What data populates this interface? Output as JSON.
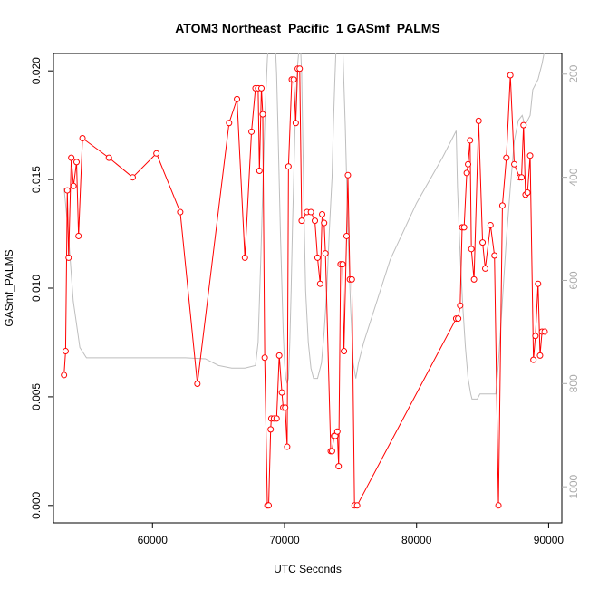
{
  "chart_data": {
    "type": "line",
    "title": "ATOM3 Northeast_Pacific_1 GASmf_PALMS",
    "xlabel": "UTC Seconds",
    "ylabel": "GASmf_PALMS",
    "xlim": [
      52500,
      91000
    ],
    "ylim": [
      -0.0008,
      0.0208
    ],
    "y2lim": [
      1070,
      160
    ],
    "y2_reversed": true,
    "grid": false,
    "x_ticks": [
      60000,
      70000,
      80000,
      90000
    ],
    "x_tick_labels": [
      "60000",
      "70000",
      "80000",
      "90000"
    ],
    "y_ticks": [
      0.0,
      0.005,
      0.01,
      0.015,
      0.02
    ],
    "y_tick_labels": [
      "0.000",
      "0.005",
      "0.010",
      "0.015",
      "0.020"
    ],
    "y2_ticks": [
      200,
      400,
      600,
      800,
      1000
    ],
    "y2_tick_labels": [
      "200",
      "400",
      "600",
      "800",
      "1000"
    ],
    "colors": {
      "series": "#ff0000",
      "secondary": "#bebebe",
      "axis": "#000000",
      "axis2": "#aaaaaa"
    },
    "series": [
      {
        "axis": "left",
        "marker": "open-circle",
        "color": "#ff0000",
        "points": [
          [
            53300,
            0.006
          ],
          [
            53420,
            0.0071
          ],
          [
            53550,
            0.0145
          ],
          [
            53650,
            0.0114
          ],
          [
            53850,
            0.016
          ],
          [
            54020,
            0.0147
          ],
          [
            54250,
            0.0158
          ],
          [
            54400,
            0.0124
          ],
          [
            54700,
            0.0169
          ],
          [
            56700,
            0.016
          ],
          [
            58500,
            0.0151
          ],
          [
            60300,
            0.0162
          ],
          [
            62100,
            0.0135
          ],
          [
            63400,
            0.0056
          ],
          [
            65800,
            0.0176
          ],
          [
            66400,
            0.0187
          ],
          [
            67000,
            0.0114
          ],
          [
            67500,
            0.0172
          ],
          [
            67800,
            0.0192
          ],
          [
            68000,
            0.0192
          ],
          [
            68100,
            0.0154
          ],
          [
            68250,
            0.0192
          ],
          [
            68350,
            0.018
          ],
          [
            68500,
            0.0068
          ],
          [
            68700,
            0.0
          ],
          [
            68800,
            0.0
          ],
          [
            68950,
            0.0035
          ],
          [
            69000,
            0.004
          ],
          [
            69200,
            0.004
          ],
          [
            69400,
            0.004
          ],
          [
            69600,
            0.0069
          ],
          [
            69800,
            0.0052
          ],
          [
            69900,
            0.0045
          ],
          [
            70050,
            0.0045
          ],
          [
            70200,
            0.0027
          ],
          [
            70300,
            0.0156
          ],
          [
            70550,
            0.0196
          ],
          [
            70700,
            0.0196
          ],
          [
            70850,
            0.0176
          ],
          [
            71000,
            0.0201
          ],
          [
            71150,
            0.0201
          ],
          [
            71300,
            0.0131
          ],
          [
            71700,
            0.0135
          ],
          [
            72000,
            0.0135
          ],
          [
            72300,
            0.0131
          ],
          [
            72500,
            0.0114
          ],
          [
            72700,
            0.0102
          ],
          [
            72850,
            0.0134
          ],
          [
            73000,
            0.013
          ],
          [
            73100,
            0.0116
          ],
          [
            73500,
            0.0025
          ],
          [
            73600,
            0.0025
          ],
          [
            73750,
            0.0032
          ],
          [
            73850,
            0.0032
          ],
          [
            74000,
            0.0034
          ],
          [
            74100,
            0.0018
          ],
          [
            74250,
            0.0111
          ],
          [
            74400,
            0.0111
          ],
          [
            74500,
            0.0071
          ],
          [
            74700,
            0.0124
          ],
          [
            74800,
            0.0152
          ],
          [
            74950,
            0.0104
          ],
          [
            75100,
            0.0104
          ],
          [
            75300,
            0.0
          ],
          [
            75500,
            0.0
          ],
          [
            83000,
            0.0086
          ],
          [
            83150,
            0.0086
          ],
          [
            83300,
            0.0092
          ],
          [
            83450,
            0.0128
          ],
          [
            83600,
            0.0128
          ],
          [
            83800,
            0.0153
          ],
          [
            83900,
            0.0157
          ],
          [
            84050,
            0.0168
          ],
          [
            84150,
            0.0118
          ],
          [
            84350,
            0.0104
          ],
          [
            84700,
            0.0177
          ],
          [
            85000,
            0.0121
          ],
          [
            85200,
            0.0109
          ],
          [
            85600,
            0.0129
          ],
          [
            85900,
            0.0115
          ],
          [
            86200,
            0.0
          ],
          [
            86500,
            0.0138
          ],
          [
            86800,
            0.016
          ],
          [
            87100,
            0.0198
          ],
          [
            87400,
            0.0157
          ],
          [
            87800,
            0.0151
          ],
          [
            87950,
            0.0151
          ],
          [
            88100,
            0.0175
          ],
          [
            88250,
            0.0143
          ],
          [
            88400,
            0.0144
          ],
          [
            88600,
            0.0161
          ],
          [
            88850,
            0.0067
          ],
          [
            89000,
            0.0078
          ],
          [
            89200,
            0.0102
          ],
          [
            89350,
            0.0069
          ],
          [
            89500,
            0.008
          ],
          [
            89700,
            0.008
          ]
        ]
      },
      {
        "axis": "right",
        "marker": "none",
        "color": "#bebebe",
        "points": [
          [
            53300,
            420
          ],
          [
            53600,
            500
          ],
          [
            54000,
            640
          ],
          [
            54500,
            730
          ],
          [
            55000,
            750
          ],
          [
            57500,
            750
          ],
          [
            60000,
            750
          ],
          [
            62500,
            750
          ],
          [
            64000,
            752
          ],
          [
            65000,
            765
          ],
          [
            66000,
            770
          ],
          [
            67000,
            770
          ],
          [
            67800,
            765
          ],
          [
            68000,
            720
          ],
          [
            68100,
            640
          ],
          [
            68200,
            560
          ],
          [
            68300,
            470
          ],
          [
            68400,
            380
          ],
          [
            68500,
            300
          ],
          [
            68600,
            230
          ],
          [
            68700,
            170
          ],
          [
            68800,
            140
          ],
          [
            69300,
            140
          ],
          [
            69400,
            200
          ],
          [
            69500,
            300
          ],
          [
            69600,
            410
          ],
          [
            69700,
            520
          ],
          [
            69800,
            610
          ],
          [
            69900,
            700
          ],
          [
            70000,
            760
          ],
          [
            70100,
            790
          ],
          [
            70200,
            800
          ],
          [
            70300,
            790
          ],
          [
            70400,
            720
          ],
          [
            70500,
            620
          ],
          [
            70600,
            500
          ],
          [
            70700,
            400
          ],
          [
            70800,
            300
          ],
          [
            70900,
            230
          ],
          [
            71000,
            180
          ],
          [
            71100,
            150
          ],
          [
            71200,
            140
          ],
          [
            71300,
            200
          ],
          [
            71400,
            350
          ],
          [
            71500,
            500
          ],
          [
            71600,
            620
          ],
          [
            71800,
            720
          ],
          [
            72000,
            770
          ],
          [
            72200,
            790
          ],
          [
            72500,
            790
          ],
          [
            72800,
            760
          ],
          [
            73000,
            700
          ],
          [
            73200,
            620
          ],
          [
            73400,
            500
          ],
          [
            73600,
            400
          ],
          [
            73700,
            300
          ],
          [
            73800,
            220
          ],
          [
            73900,
            150
          ],
          [
            74000,
            140
          ],
          [
            74400,
            140
          ],
          [
            74600,
            300
          ],
          [
            74800,
            500
          ],
          [
            75000,
            650
          ],
          [
            75200,
            760
          ],
          [
            75400,
            790
          ],
          [
            75600,
            760
          ],
          [
            76000,
            720
          ],
          [
            78000,
            560
          ],
          [
            80000,
            450
          ],
          [
            82000,
            360
          ],
          [
            83000,
            310
          ],
          [
            83100,
            420
          ],
          [
            83300,
            550
          ],
          [
            83500,
            650
          ],
          [
            83700,
            730
          ],
          [
            83900,
            790
          ],
          [
            84100,
            820
          ],
          [
            84200,
            830
          ],
          [
            84600,
            830
          ],
          [
            84800,
            820
          ],
          [
            85000,
            820
          ],
          [
            86000,
            820
          ],
          [
            86200,
            760
          ],
          [
            86500,
            640
          ],
          [
            86800,
            520
          ],
          [
            87100,
            420
          ],
          [
            87400,
            330
          ],
          [
            87700,
            290
          ],
          [
            88000,
            280
          ],
          [
            88200,
            300
          ],
          [
            88600,
            280
          ],
          [
            88800,
            230
          ],
          [
            89200,
            210
          ],
          [
            89500,
            180
          ],
          [
            89650,
            160
          ]
        ]
      }
    ]
  }
}
